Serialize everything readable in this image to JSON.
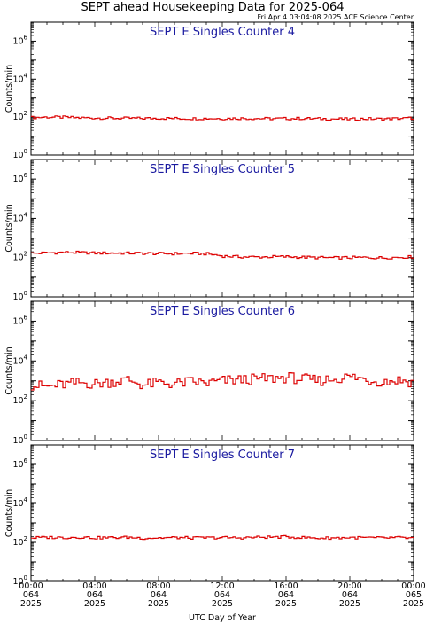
{
  "header": {
    "title": "SEPT ahead Housekeeping Data for 2025-064",
    "subtitle": "Fri Apr  4 03:04:08 2025 ACE Science Center"
  },
  "colors": {
    "series": "#dd0000",
    "panel_title": "#1a1aa0",
    "axes": "#000000"
  },
  "chart_data": [
    {
      "type": "line",
      "title": "SEPT E Singles Counter 4",
      "ylabel": "Counts/min",
      "yscale": "log",
      "ylim_exponent": [
        0,
        7
      ],
      "ytick_exponents": [
        0,
        2,
        4,
        6
      ],
      "x_hours": [
        0,
        1,
        2,
        3,
        4,
        5,
        6,
        7,
        8,
        9,
        10,
        11,
        12,
        13,
        14,
        15,
        16,
        17,
        18,
        19,
        20,
        21,
        22,
        23,
        24
      ],
      "y_counts": [
        95,
        100,
        98,
        92,
        90,
        88,
        87,
        86,
        88,
        85,
        84,
        85,
        84,
        86,
        85,
        83,
        84,
        85,
        82,
        80,
        78,
        82,
        80,
        85,
        90
      ],
      "series": [
        {
          "name": "",
          "color": "#dd0000"
        }
      ]
    },
    {
      "type": "line",
      "title": "SEPT E Singles Counter 5",
      "ylabel": "Counts/min",
      "yscale": "log",
      "ylim_exponent": [
        0,
        7
      ],
      "ytick_exponents": [
        0,
        2,
        4,
        6
      ],
      "x_hours": [
        0,
        1,
        2,
        3,
        4,
        5,
        6,
        7,
        8,
        9,
        10,
        11,
        12,
        13,
        14,
        15,
        16,
        17,
        18,
        19,
        20,
        21,
        22,
        23,
        24
      ],
      "y_counts": [
        165,
        175,
        185,
        180,
        170,
        172,
        168,
        165,
        160,
        158,
        165,
        155,
        120,
        110,
        108,
        110,
        112,
        105,
        100,
        98,
        100,
        102,
        98,
        105,
        110
      ],
      "series": [
        {
          "name": "",
          "color": "#dd0000"
        }
      ]
    },
    {
      "type": "line",
      "title": "SEPT E Singles Counter 6",
      "ylabel": "Counts/min",
      "yscale": "log",
      "ylim_exponent": [
        0,
        7
      ],
      "ytick_exponents": [
        0,
        2,
        4,
        6
      ],
      "x_hours": [
        0,
        1,
        2,
        3,
        4,
        5,
        6,
        7,
        8,
        9,
        10,
        11,
        12,
        13,
        14,
        15,
        16,
        17,
        18,
        19,
        20,
        21,
        22,
        23,
        24
      ],
      "y_counts": [
        600,
        500,
        650,
        800,
        700,
        900,
        1100,
        600,
        800,
        700,
        900,
        750,
        1000,
        1100,
        1200,
        1300,
        1500,
        1200,
        1000,
        1300,
        1600,
        1100,
        900,
        1100,
        800
      ],
      "series": [
        {
          "name": "",
          "color": "#dd0000"
        }
      ]
    },
    {
      "type": "line",
      "title": "SEPT E Singles Counter 7",
      "ylabel": "Counts/min",
      "yscale": "log",
      "ylim_exponent": [
        0,
        7
      ],
      "ytick_exponents": [
        0,
        2,
        4,
        6
      ],
      "x_hours": [
        0,
        1,
        2,
        3,
        4,
        5,
        6,
        7,
        8,
        9,
        10,
        11,
        12,
        13,
        14,
        15,
        16,
        17,
        18,
        19,
        20,
        21,
        22,
        23,
        24
      ],
      "y_counts": [
        170,
        180,
        175,
        185,
        170,
        175,
        180,
        165,
        170,
        175,
        168,
        172,
        175,
        170,
        180,
        185,
        190,
        175,
        165,
        170,
        175,
        172,
        168,
        175,
        160
      ],
      "series": [
        {
          "name": "",
          "color": "#dd0000"
        }
      ]
    }
  ],
  "xaxis": {
    "label": "UTC Day of Year",
    "ticks": [
      {
        "hour": 0,
        "time": "00:00",
        "day": "064",
        "year": "2025"
      },
      {
        "hour": 4,
        "time": "04:00",
        "day": "064",
        "year": "2025"
      },
      {
        "hour": 8,
        "time": "08:00",
        "day": "064",
        "year": "2025"
      },
      {
        "hour": 12,
        "time": "12:00",
        "day": "064",
        "year": "2025"
      },
      {
        "hour": 16,
        "time": "16:00",
        "day": "064",
        "year": "2025"
      },
      {
        "hour": 20,
        "time": "20:00",
        "day": "064",
        "year": "2025"
      },
      {
        "hour": 24,
        "time": "00:00",
        "day": "065",
        "year": "2025"
      }
    ]
  }
}
